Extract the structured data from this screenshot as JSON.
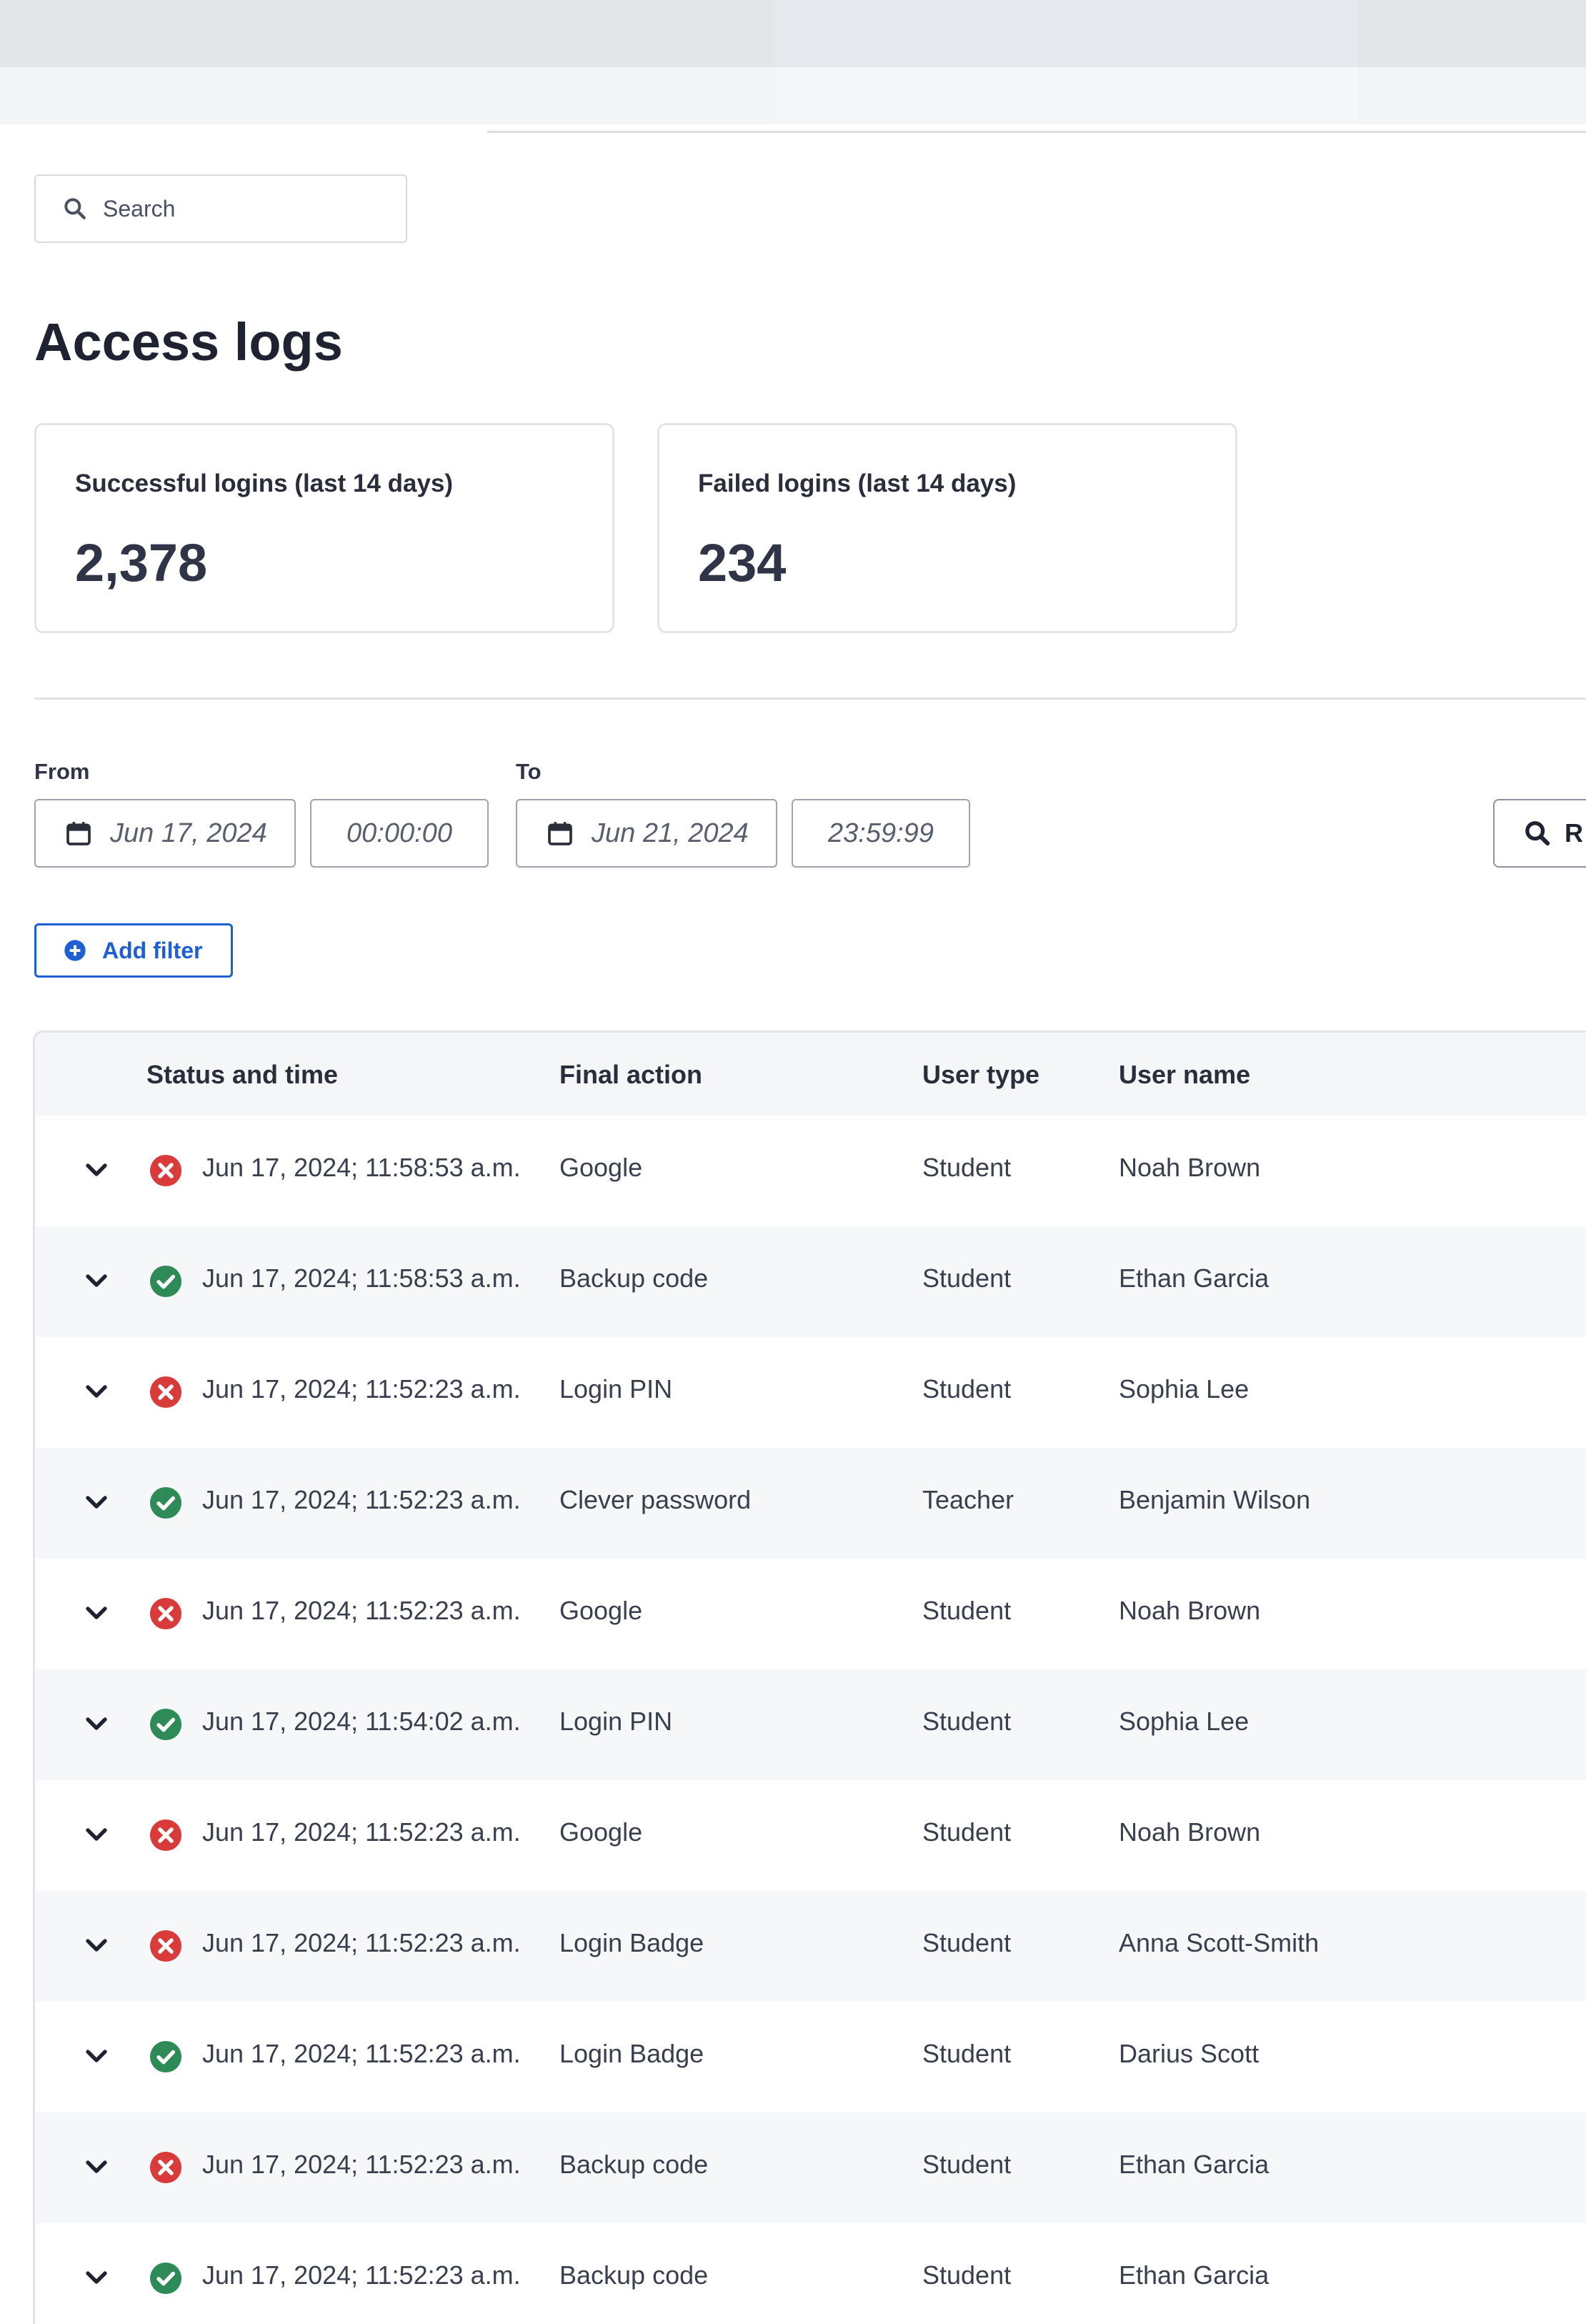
{
  "search": {
    "placeholder": "Search"
  },
  "page": {
    "title": "Access logs"
  },
  "stats": [
    {
      "label": "Successful logins (last 14 days)",
      "value": "2,378"
    },
    {
      "label": "Failed logins (last 14 days)",
      "value": "234"
    }
  ],
  "filters": {
    "from_label": "From",
    "from_date": "Jun 17, 2024",
    "from_time": "00:00:00",
    "to_label": "To",
    "to_date": "Jun 21, 2024",
    "to_time": "23:59:99",
    "run_label": "R",
    "add_filter_label": "Add filter"
  },
  "colors": {
    "accent": "#1f5fd6",
    "success": "#2e8b57",
    "failure": "#d93a3a"
  },
  "table": {
    "headers": {
      "status_time": "Status and time",
      "final_action": "Final action",
      "user_type": "User type",
      "user_name": "User name"
    },
    "rows": [
      {
        "status": "failure",
        "time": "Jun 17, 2024; 11:58:53 a.m.",
        "action": "Google",
        "type": "Student",
        "name": "Noah Brown"
      },
      {
        "status": "success",
        "time": "Jun 17, 2024; 11:58:53 a.m.",
        "action": "Backup code",
        "type": "Student",
        "name": "Ethan Garcia"
      },
      {
        "status": "failure",
        "time": "Jun 17, 2024; 11:52:23 a.m.",
        "action": "Login PIN",
        "type": "Student",
        "name": "Sophia Lee"
      },
      {
        "status": "success",
        "time": "Jun 17, 2024; 11:52:23 a.m.",
        "action": "Clever password",
        "type": "Teacher",
        "name": "Benjamin Wilson"
      },
      {
        "status": "failure",
        "time": "Jun 17, 2024; 11:52:23 a.m.",
        "action": "Google",
        "type": "Student",
        "name": "Noah Brown"
      },
      {
        "status": "success",
        "time": "Jun 17, 2024; 11:54:02 a.m.",
        "action": "Login PIN",
        "type": "Student",
        "name": "Sophia Lee"
      },
      {
        "status": "failure",
        "time": "Jun 17, 2024; 11:52:23 a.m.",
        "action": "Google",
        "type": "Student",
        "name": "Noah Brown"
      },
      {
        "status": "failure",
        "time": "Jun 17, 2024; 11:52:23 a.m.",
        "action": "Login Badge",
        "type": "Student",
        "name": "Anna Scott-Smith"
      },
      {
        "status": "success",
        "time": "Jun 17, 2024; 11:52:23 a.m.",
        "action": "Login Badge",
        "type": "Student",
        "name": "Darius Scott"
      },
      {
        "status": "failure",
        "time": "Jun 17, 2024; 11:52:23 a.m.",
        "action": "Backup code",
        "type": "Student",
        "name": "Ethan Garcia"
      },
      {
        "status": "success",
        "time": "Jun 17, 2024; 11:52:23 a.m.",
        "action": "Backup code",
        "type": "Student",
        "name": "Ethan Garcia"
      }
    ]
  }
}
